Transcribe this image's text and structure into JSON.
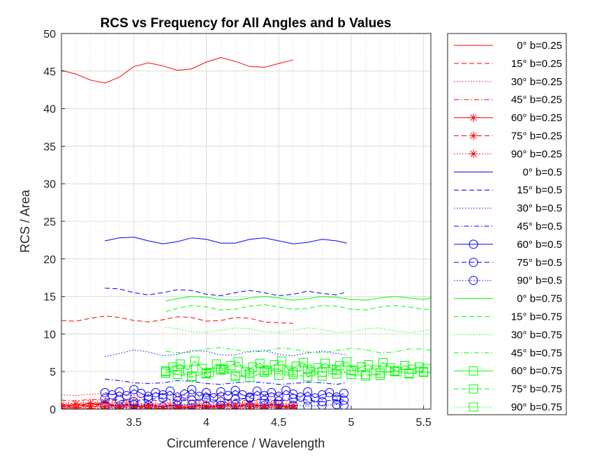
{
  "chart_data": {
    "type": "line",
    "title": "RCS vs Frequency for All Angles and b Values",
    "xlabel": "Circumference / Wavelength",
    "ylabel": "RCS / Area",
    "xlim": [
      3.0,
      5.55
    ],
    "ylim": [
      0,
      50
    ],
    "xticks": [
      3.5,
      4,
      4.5,
      5,
      5.5
    ],
    "xtick_labels": [
      "3.5",
      "4",
      "4.5",
      "5",
      "5.5"
    ],
    "yticks": [
      0,
      5,
      10,
      15,
      20,
      25,
      30,
      35,
      40,
      45,
      50
    ],
    "ytick_labels": [
      "0",
      "5",
      "10",
      "15",
      "20",
      "25",
      "30",
      "35",
      "40",
      "45",
      "50"
    ],
    "grid": true,
    "legend_position": "outside-right",
    "colors": {
      "b0.25": "#ff0000",
      "b0.5": "#0000ff",
      "b0.75": "#00ff00"
    },
    "series": [
      {
        "name": "0° b=0.25",
        "color": "#ff0000",
        "line": "solid",
        "marker": "none",
        "x": [
          3.0,
          3.1,
          3.2,
          3.3,
          3.4,
          3.5,
          3.6,
          3.7,
          3.8,
          3.9,
          4.0,
          4.1,
          4.2,
          4.3,
          4.4,
          4.5,
          4.6
        ],
        "y": [
          45.1,
          44.6,
          43.8,
          43.4,
          44.2,
          45.6,
          46.1,
          45.7,
          45.1,
          45.3,
          46.2,
          46.8,
          46.3,
          45.6,
          45.5,
          46.0,
          46.5
        ]
      },
      {
        "name": "15° b=0.25",
        "color": "#ff0000",
        "line": "dashed",
        "marker": "none",
        "x": [
          3.0,
          3.1,
          3.2,
          3.3,
          3.4,
          3.5,
          3.6,
          3.7,
          3.8,
          3.9,
          4.0,
          4.1,
          4.2,
          4.3,
          4.4,
          4.5,
          4.6
        ],
        "y": [
          11.8,
          11.7,
          12.1,
          12.4,
          12.2,
          11.8,
          11.6,
          11.9,
          12.3,
          12.2,
          11.7,
          11.8,
          12.2,
          12.1,
          11.6,
          11.5,
          11.4
        ]
      },
      {
        "name": "30° b=0.25",
        "color": "#ff0000",
        "line": "dotted",
        "marker": "none",
        "x": [
          3.0,
          3.1,
          3.2,
          3.3,
          3.4,
          3.5,
          3.6,
          3.7,
          3.8,
          3.9,
          4.0,
          4.1,
          4.2,
          4.3,
          4.4,
          4.5,
          4.6
        ],
        "y": [
          1.9,
          1.8,
          2.0,
          2.1,
          1.9,
          1.8,
          2.0,
          2.1,
          1.9,
          1.8,
          2.0,
          2.1,
          1.9,
          1.8,
          2.0,
          2.0,
          1.9
        ]
      },
      {
        "name": "45° b=0.25",
        "color": "#ff0000",
        "line": "dashdot",
        "marker": "none",
        "x": [
          3.0,
          3.1,
          3.2,
          3.3,
          3.4,
          3.5,
          3.6,
          3.7,
          3.8,
          3.9,
          4.0,
          4.1,
          4.2,
          4.3,
          4.4,
          4.5,
          4.6
        ],
        "y": [
          1.2,
          1.1,
          1.3,
          1.2,
          1.1,
          1.3,
          1.2,
          1.1,
          1.3,
          1.2,
          1.1,
          1.3,
          1.2,
          1.1,
          1.3,
          1.2,
          1.1
        ]
      },
      {
        "name": "60° b=0.25",
        "color": "#ff0000",
        "line": "solid",
        "marker": "asterisk",
        "x": [
          3.0,
          3.05,
          3.1,
          3.15,
          3.2,
          3.25,
          3.3,
          3.35,
          3.4,
          3.45,
          3.5,
          3.55,
          3.6,
          3.65,
          3.7,
          3.75,
          3.8,
          3.85,
          3.9,
          3.95,
          4.0,
          4.05,
          4.1,
          4.15,
          4.2,
          4.25,
          4.3,
          4.35,
          4.4,
          4.45,
          4.5,
          4.55,
          4.6
        ],
        "y": [
          0.6,
          0.4,
          0.7,
          0.5,
          0.8,
          0.6,
          0.9,
          0.5,
          0.4,
          0.6,
          0.5,
          0.3,
          0.6,
          0.4,
          0.3,
          0.5,
          0.4,
          0.2,
          0.3,
          0.5,
          0.4,
          0.3,
          0.5,
          0.6,
          0.4,
          0.5,
          0.7,
          0.5,
          0.4,
          0.6,
          0.5,
          0.3,
          0.5
        ]
      },
      {
        "name": "75° b=0.25",
        "color": "#ff0000",
        "line": "dashed",
        "marker": "asterisk",
        "x": [
          3.0,
          3.1,
          3.2,
          3.3,
          3.4,
          3.5,
          3.6,
          3.7,
          3.8,
          3.9,
          4.0,
          4.1,
          4.2,
          4.3,
          4.4,
          4.5,
          4.6
        ],
        "y": [
          0.3,
          0.2,
          0.4,
          0.3,
          0.2,
          0.3,
          0.2,
          0.1,
          0.2,
          0.3,
          0.2,
          0.3,
          0.4,
          0.3,
          0.2,
          0.3,
          0.2
        ]
      },
      {
        "name": "90° b=0.25",
        "color": "#ff0000",
        "line": "dotted",
        "marker": "asterisk",
        "x": [
          3.0,
          3.1,
          3.2,
          3.3,
          3.4,
          3.5,
          3.6,
          3.7,
          3.8,
          3.9,
          4.0,
          4.1,
          4.2,
          4.3,
          4.4,
          4.5,
          4.6
        ],
        "y": [
          0.1,
          0.05,
          0.1,
          0.08,
          0.05,
          0.1,
          0.06,
          0.04,
          0.08,
          0.1,
          0.05,
          0.08,
          0.1,
          0.06,
          0.05,
          0.08,
          0.06
        ]
      },
      {
        "name": "0° b=0.5",
        "color": "#0000ff",
        "line": "solid",
        "marker": "none",
        "x": [
          3.3,
          3.4,
          3.5,
          3.6,
          3.7,
          3.8,
          3.9,
          4.0,
          4.1,
          4.2,
          4.3,
          4.4,
          4.5,
          4.6,
          4.7,
          4.8,
          4.9,
          4.97
        ],
        "y": [
          22.4,
          22.8,
          22.9,
          22.4,
          22.0,
          22.3,
          22.8,
          22.6,
          22.1,
          22.1,
          22.6,
          22.8,
          22.4,
          22.0,
          22.2,
          22.6,
          22.4,
          22.1
        ]
      },
      {
        "name": "15° b=0.5",
        "color": "#0000ff",
        "line": "dashed",
        "marker": "none",
        "x": [
          3.3,
          3.4,
          3.5,
          3.6,
          3.7,
          3.8,
          3.9,
          4.0,
          4.1,
          4.2,
          4.3,
          4.4,
          4.5,
          4.6,
          4.7,
          4.8,
          4.9,
          4.97
        ],
        "y": [
          16.1,
          16.0,
          15.5,
          15.2,
          15.5,
          15.9,
          15.8,
          15.3,
          15.1,
          15.5,
          15.8,
          15.5,
          15.1,
          15.3,
          15.7,
          15.4,
          15.2,
          15.6
        ]
      },
      {
        "name": "30° b=0.5",
        "color": "#0000ff",
        "line": "dotted",
        "marker": "none",
        "x": [
          3.3,
          3.4,
          3.5,
          3.6,
          3.7,
          3.8,
          3.9,
          4.0,
          4.1,
          4.2,
          4.3,
          4.4,
          4.5,
          4.6,
          4.7,
          4.8,
          4.9,
          4.97
        ],
        "y": [
          7.0,
          7.4,
          7.9,
          7.6,
          7.1,
          7.3,
          7.8,
          7.7,
          7.2,
          7.2,
          7.7,
          7.8,
          7.3,
          7.1,
          7.5,
          7.7,
          7.4,
          7.2
        ]
      },
      {
        "name": "45° b=0.5",
        "color": "#0000ff",
        "line": "dashdot",
        "marker": "none",
        "x": [
          3.3,
          3.4,
          3.5,
          3.6,
          3.7,
          3.8,
          3.9,
          4.0,
          4.1,
          4.2,
          4.3,
          4.4,
          4.5,
          4.6,
          4.7,
          4.8,
          4.9,
          4.97
        ],
        "y": [
          4.0,
          3.8,
          3.5,
          3.4,
          3.5,
          3.8,
          3.7,
          3.4,
          3.3,
          3.5,
          3.7,
          3.5,
          3.3,
          3.4,
          3.6,
          3.5,
          3.3,
          3.5
        ]
      },
      {
        "name": "60° b=0.5",
        "color": "#0000ff",
        "line": "solid",
        "marker": "circle",
        "x": [
          3.3,
          3.35,
          3.4,
          3.45,
          3.5,
          3.55,
          3.6,
          3.65,
          3.7,
          3.75,
          3.8,
          3.85,
          3.9,
          3.95,
          4.0,
          4.05,
          4.1,
          4.15,
          4.2,
          4.25,
          4.3,
          4.35,
          4.4,
          4.45,
          4.5,
          4.55,
          4.6,
          4.65,
          4.7,
          4.75,
          4.8,
          4.85,
          4.9,
          4.95
        ],
        "y": [
          2.2,
          1.9,
          2.3,
          1.8,
          2.6,
          2.1,
          1.7,
          2.2,
          1.9,
          2.4,
          1.6,
          2.0,
          2.6,
          1.7,
          2.2,
          1.5,
          2.3,
          1.8,
          2.5,
          1.9,
          1.6,
          2.4,
          1.8,
          2.2,
          1.7,
          2.5,
          2.0,
          1.6,
          2.3,
          1.5,
          1.9,
          2.2,
          1.6,
          2.1
        ]
      },
      {
        "name": "75° b=0.5",
        "color": "#0000ff",
        "line": "dashed",
        "marker": "circle",
        "x": [
          3.3,
          3.4,
          3.5,
          3.6,
          3.7,
          3.8,
          3.9,
          4.0,
          4.1,
          4.2,
          4.3,
          4.4,
          4.5,
          4.6,
          4.7,
          4.8,
          4.9,
          4.95
        ],
        "y": [
          1.4,
          1.2,
          1.0,
          1.3,
          1.5,
          1.1,
          1.2,
          1.4,
          1.0,
          1.3,
          1.5,
          1.2,
          1.1,
          1.4,
          1.2,
          1.0,
          1.3,
          1.2
        ]
      },
      {
        "name": "90° b=0.5",
        "color": "#0000ff",
        "line": "dotted",
        "marker": "circle",
        "x": [
          3.3,
          3.4,
          3.5,
          3.6,
          3.7,
          3.8,
          3.9,
          4.0,
          4.1,
          4.2,
          4.3,
          4.4,
          4.5,
          4.6,
          4.7,
          4.8,
          4.9,
          4.95
        ],
        "y": [
          0.5,
          0.4,
          0.6,
          0.5,
          0.3,
          0.5,
          0.6,
          0.4,
          0.5,
          0.6,
          0.4,
          0.5,
          0.6,
          0.5,
          0.4,
          0.5,
          0.6,
          0.5
        ]
      },
      {
        "name": "0° b=0.75",
        "color": "#00ff00",
        "line": "solid",
        "marker": "none",
        "x": [
          3.72,
          3.8,
          3.9,
          4.0,
          4.1,
          4.2,
          4.3,
          4.4,
          4.5,
          4.6,
          4.7,
          4.8,
          4.9,
          5.0,
          5.1,
          5.2,
          5.3,
          5.4,
          5.5,
          5.55
        ],
        "y": [
          14.4,
          14.7,
          15.0,
          14.9,
          14.6,
          14.5,
          14.8,
          15.0,
          14.8,
          14.5,
          14.7,
          15.0,
          14.9,
          14.6,
          14.5,
          14.8,
          15.0,
          14.8,
          14.6,
          14.8
        ]
      },
      {
        "name": "15° b=0.75",
        "color": "#00ff00",
        "line": "dashed",
        "marker": "none",
        "x": [
          3.72,
          3.8,
          3.9,
          4.0,
          4.1,
          4.2,
          4.3,
          4.4,
          4.5,
          4.6,
          4.7,
          4.8,
          4.9,
          5.0,
          5.1,
          5.2,
          5.3,
          5.4,
          5.5,
          5.55
        ],
        "y": [
          13.0,
          13.4,
          13.8,
          13.6,
          13.2,
          13.3,
          13.7,
          13.9,
          13.6,
          13.3,
          13.4,
          13.8,
          13.7,
          13.3,
          13.2,
          13.6,
          13.8,
          13.6,
          13.3,
          13.2
        ]
      },
      {
        "name": "30° b=0.75",
        "color": "#00ff00",
        "line": "dotted",
        "marker": "none",
        "x": [
          3.72,
          3.8,
          3.9,
          4.0,
          4.1,
          4.2,
          4.3,
          4.4,
          4.5,
          4.6,
          4.7,
          4.8,
          4.9,
          5.0,
          5.1,
          5.2,
          5.3,
          5.4,
          5.5,
          5.55
        ],
        "y": [
          10.9,
          10.7,
          10.3,
          10.2,
          10.5,
          10.8,
          10.7,
          10.3,
          10.2,
          10.5,
          10.8,
          10.6,
          10.2,
          10.3,
          10.7,
          10.8,
          10.4,
          10.2,
          10.4,
          10.6
        ]
      },
      {
        "name": "45° b=0.75",
        "color": "#00ff00",
        "line": "dashdot",
        "marker": "none",
        "x": [
          3.72,
          3.8,
          3.9,
          4.0,
          4.1,
          4.2,
          4.3,
          4.4,
          4.5,
          4.6,
          4.7,
          4.8,
          4.9,
          5.0,
          5.1,
          5.2,
          5.3,
          5.4,
          5.5,
          5.55
        ],
        "y": [
          7.7,
          7.5,
          7.6,
          8.0,
          8.2,
          7.9,
          7.6,
          7.7,
          8.1,
          8.0,
          7.6,
          7.5,
          7.8,
          8.1,
          7.9,
          7.5,
          7.6,
          8.0,
          8.0,
          7.8
        ]
      },
      {
        "name": "60° b=0.75",
        "color": "#00ff00",
        "line": "solid",
        "marker": "square",
        "x": [
          3.72,
          3.77,
          3.82,
          3.87,
          3.92,
          3.97,
          4.02,
          4.07,
          4.12,
          4.17,
          4.22,
          4.27,
          4.32,
          4.37,
          4.42,
          4.47,
          4.52,
          4.57,
          4.62,
          4.67,
          4.72,
          4.77,
          4.82,
          4.87,
          4.92,
          4.97,
          5.02,
          5.07,
          5.12,
          5.17,
          5.22,
          5.27,
          5.32,
          5.37,
          5.42,
          5.47,
          5.52
        ],
        "y": [
          5.1,
          5.6,
          6.0,
          5.2,
          6.4,
          5.4,
          4.9,
          6.0,
          5.3,
          5.8,
          6.3,
          5.0,
          5.6,
          6.1,
          5.2,
          5.9,
          6.4,
          5.1,
          5.7,
          6.2,
          5.0,
          5.5,
          6.1,
          5.3,
          5.8,
          6.3,
          5.1,
          5.6,
          5.9,
          5.2,
          6.2,
          5.5,
          5.0,
          5.8,
          5.3,
          5.6,
          5.4
        ]
      },
      {
        "name": "75° b=0.75",
        "color": "#00ff00",
        "line": "dashed",
        "marker": "square",
        "x": [
          3.72,
          3.8,
          3.9,
          4.0,
          4.1,
          4.2,
          4.3,
          4.4,
          4.5,
          4.6,
          4.7,
          4.8,
          4.9,
          5.0,
          5.1,
          5.2,
          5.3,
          5.4,
          5.5
        ],
        "y": [
          5.0,
          4.6,
          4.3,
          4.8,
          5.2,
          4.5,
          4.2,
          4.9,
          5.3,
          4.6,
          4.3,
          4.9,
          5.2,
          4.6,
          4.4,
          4.8,
          5.1,
          4.7,
          4.9
        ]
      },
      {
        "name": "90° b=0.75",
        "color": "#00ff00",
        "line": "dotted",
        "marker": "square",
        "x": [
          3.72,
          3.8,
          3.9,
          4.0,
          4.1,
          4.2,
          4.3,
          4.4,
          4.5,
          4.6,
          4.7,
          4.8,
          4.9,
          5.0,
          5.1,
          5.2,
          5.3,
          5.4,
          5.5
        ],
        "y": [
          4.8,
          5.2,
          4.4,
          4.7,
          5.4,
          4.3,
          4.8,
          5.1,
          4.5,
          4.9,
          5.3,
          4.4,
          4.7,
          5.2,
          4.6,
          4.5,
          5.0,
          4.8,
          5.0
        ]
      }
    ]
  }
}
